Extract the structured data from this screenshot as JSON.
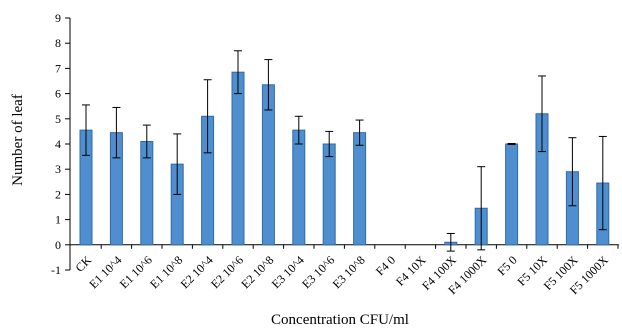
{
  "chart_data": {
    "type": "bar",
    "title": "",
    "xlabel": "Concentration  CFU/ml",
    "ylabel": "Number of leaf",
    "ylim": [
      -1,
      9
    ],
    "yticks": [
      -1,
      0,
      1,
      2,
      3,
      4,
      5,
      6,
      7,
      8,
      9
    ],
    "grid": false,
    "legend": "none",
    "categories": [
      "CK",
      "E1 10^4",
      "E1 10^6",
      "E1 10^8",
      "E2 10^4",
      "E2 10^6",
      "E2 10^8",
      "E3 10^4",
      "E3 10^6",
      "E3 10^8",
      "F4 0",
      "F4 10X",
      "F4 100X",
      "F4 1000X",
      "F5 0",
      "F5 10X",
      "F5 100X",
      "F5 1000X"
    ],
    "values": [
      4.55,
      4.45,
      4.1,
      3.2,
      5.1,
      6.85,
      6.35,
      4.55,
      4.0,
      4.45,
      0,
      0,
      0.1,
      1.45,
      4.0,
      5.2,
      2.9,
      2.45
    ],
    "errors": [
      1.0,
      1.0,
      0.65,
      1.2,
      1.45,
      0.85,
      1.0,
      0.55,
      0.5,
      0.5,
      0,
      0,
      0.35,
      1.65,
      0.02,
      1.5,
      1.35,
      1.85
    ],
    "bar_color": "#4f8fd0",
    "bar_edge_color": "#2f6aa8"
  }
}
